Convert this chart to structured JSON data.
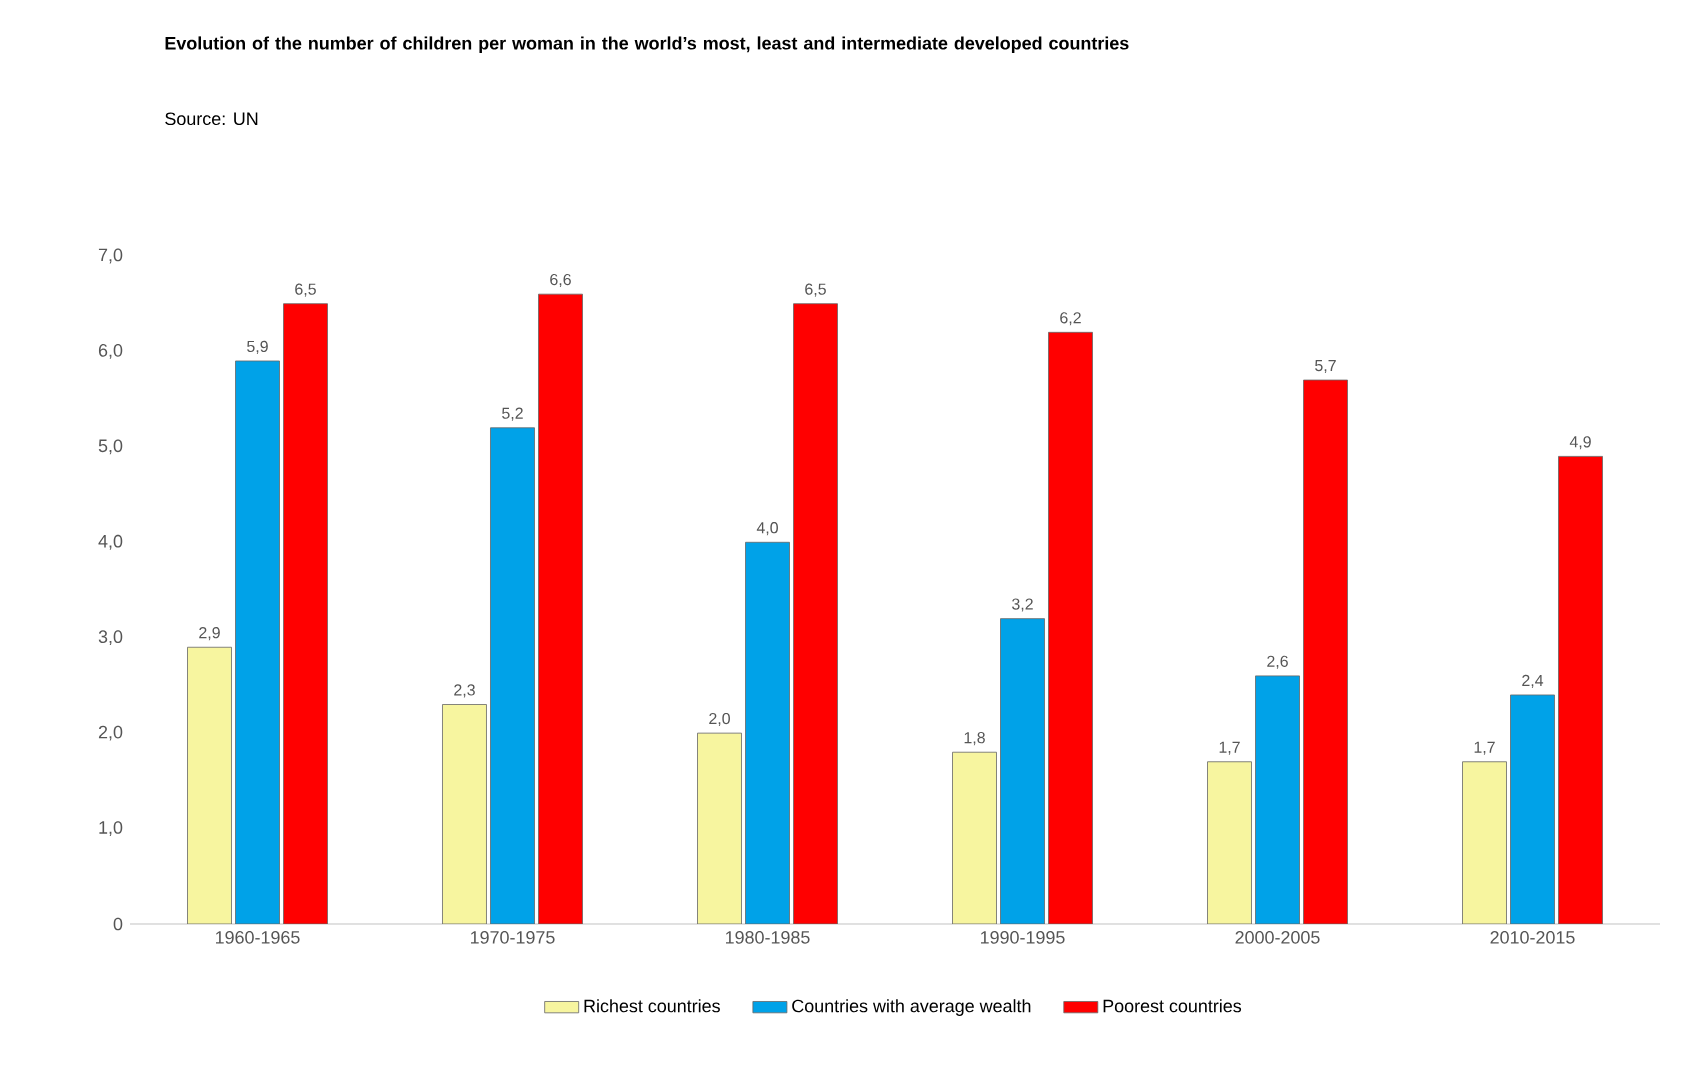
{
  "chart_data": {
    "type": "bar",
    "title": "Evolution of the number of children per woman in the world’s most, least and intermediate developed countries",
    "subtitle": "Source: UN",
    "categories": [
      "1960-1965",
      "1970-1975",
      "1980-1985",
      "1990-1995",
      "2000-2005",
      "2010-2015"
    ],
    "series": [
      {
        "name": "Richest countries",
        "color": "#f7f59f",
        "values": [
          2.9,
          2.3,
          2.0,
          1.8,
          1.7,
          1.7
        ],
        "value_labels": [
          "2,9",
          "2,3",
          "2,0",
          "1,8",
          "1,7",
          "1,7"
        ]
      },
      {
        "name": "Countries with average wealth",
        "color": "#00a2e8",
        "values": [
          5.9,
          5.2,
          4.0,
          3.2,
          2.6,
          2.4
        ],
        "value_labels": [
          "5,9",
          "5,2",
          "4,0",
          "3,2",
          "2,6",
          "2,4"
        ]
      },
      {
        "name": "Poorest countries",
        "color": "#ff0000",
        "values": [
          6.5,
          6.6,
          6.5,
          6.2,
          5.7,
          4.9
        ],
        "value_labels": [
          "6,5",
          "6,6",
          "6,5",
          "6,2",
          "5,7",
          "4,9"
        ]
      }
    ],
    "ylim": [
      0,
      7
    ],
    "yticks": [
      0,
      {
        "value": 1,
        "label": "1,0"
      },
      {
        "value": 2,
        "label": "2,0"
      },
      {
        "value": 3,
        "label": "3,0"
      },
      {
        "value": 4,
        "label": "4,0"
      },
      {
        "value": 5,
        "label": "5,0"
      },
      {
        "value": 6,
        "label": "6,0"
      },
      {
        "value": 7,
        "label": "7,0"
      }
    ],
    "legend": "bottom"
  }
}
